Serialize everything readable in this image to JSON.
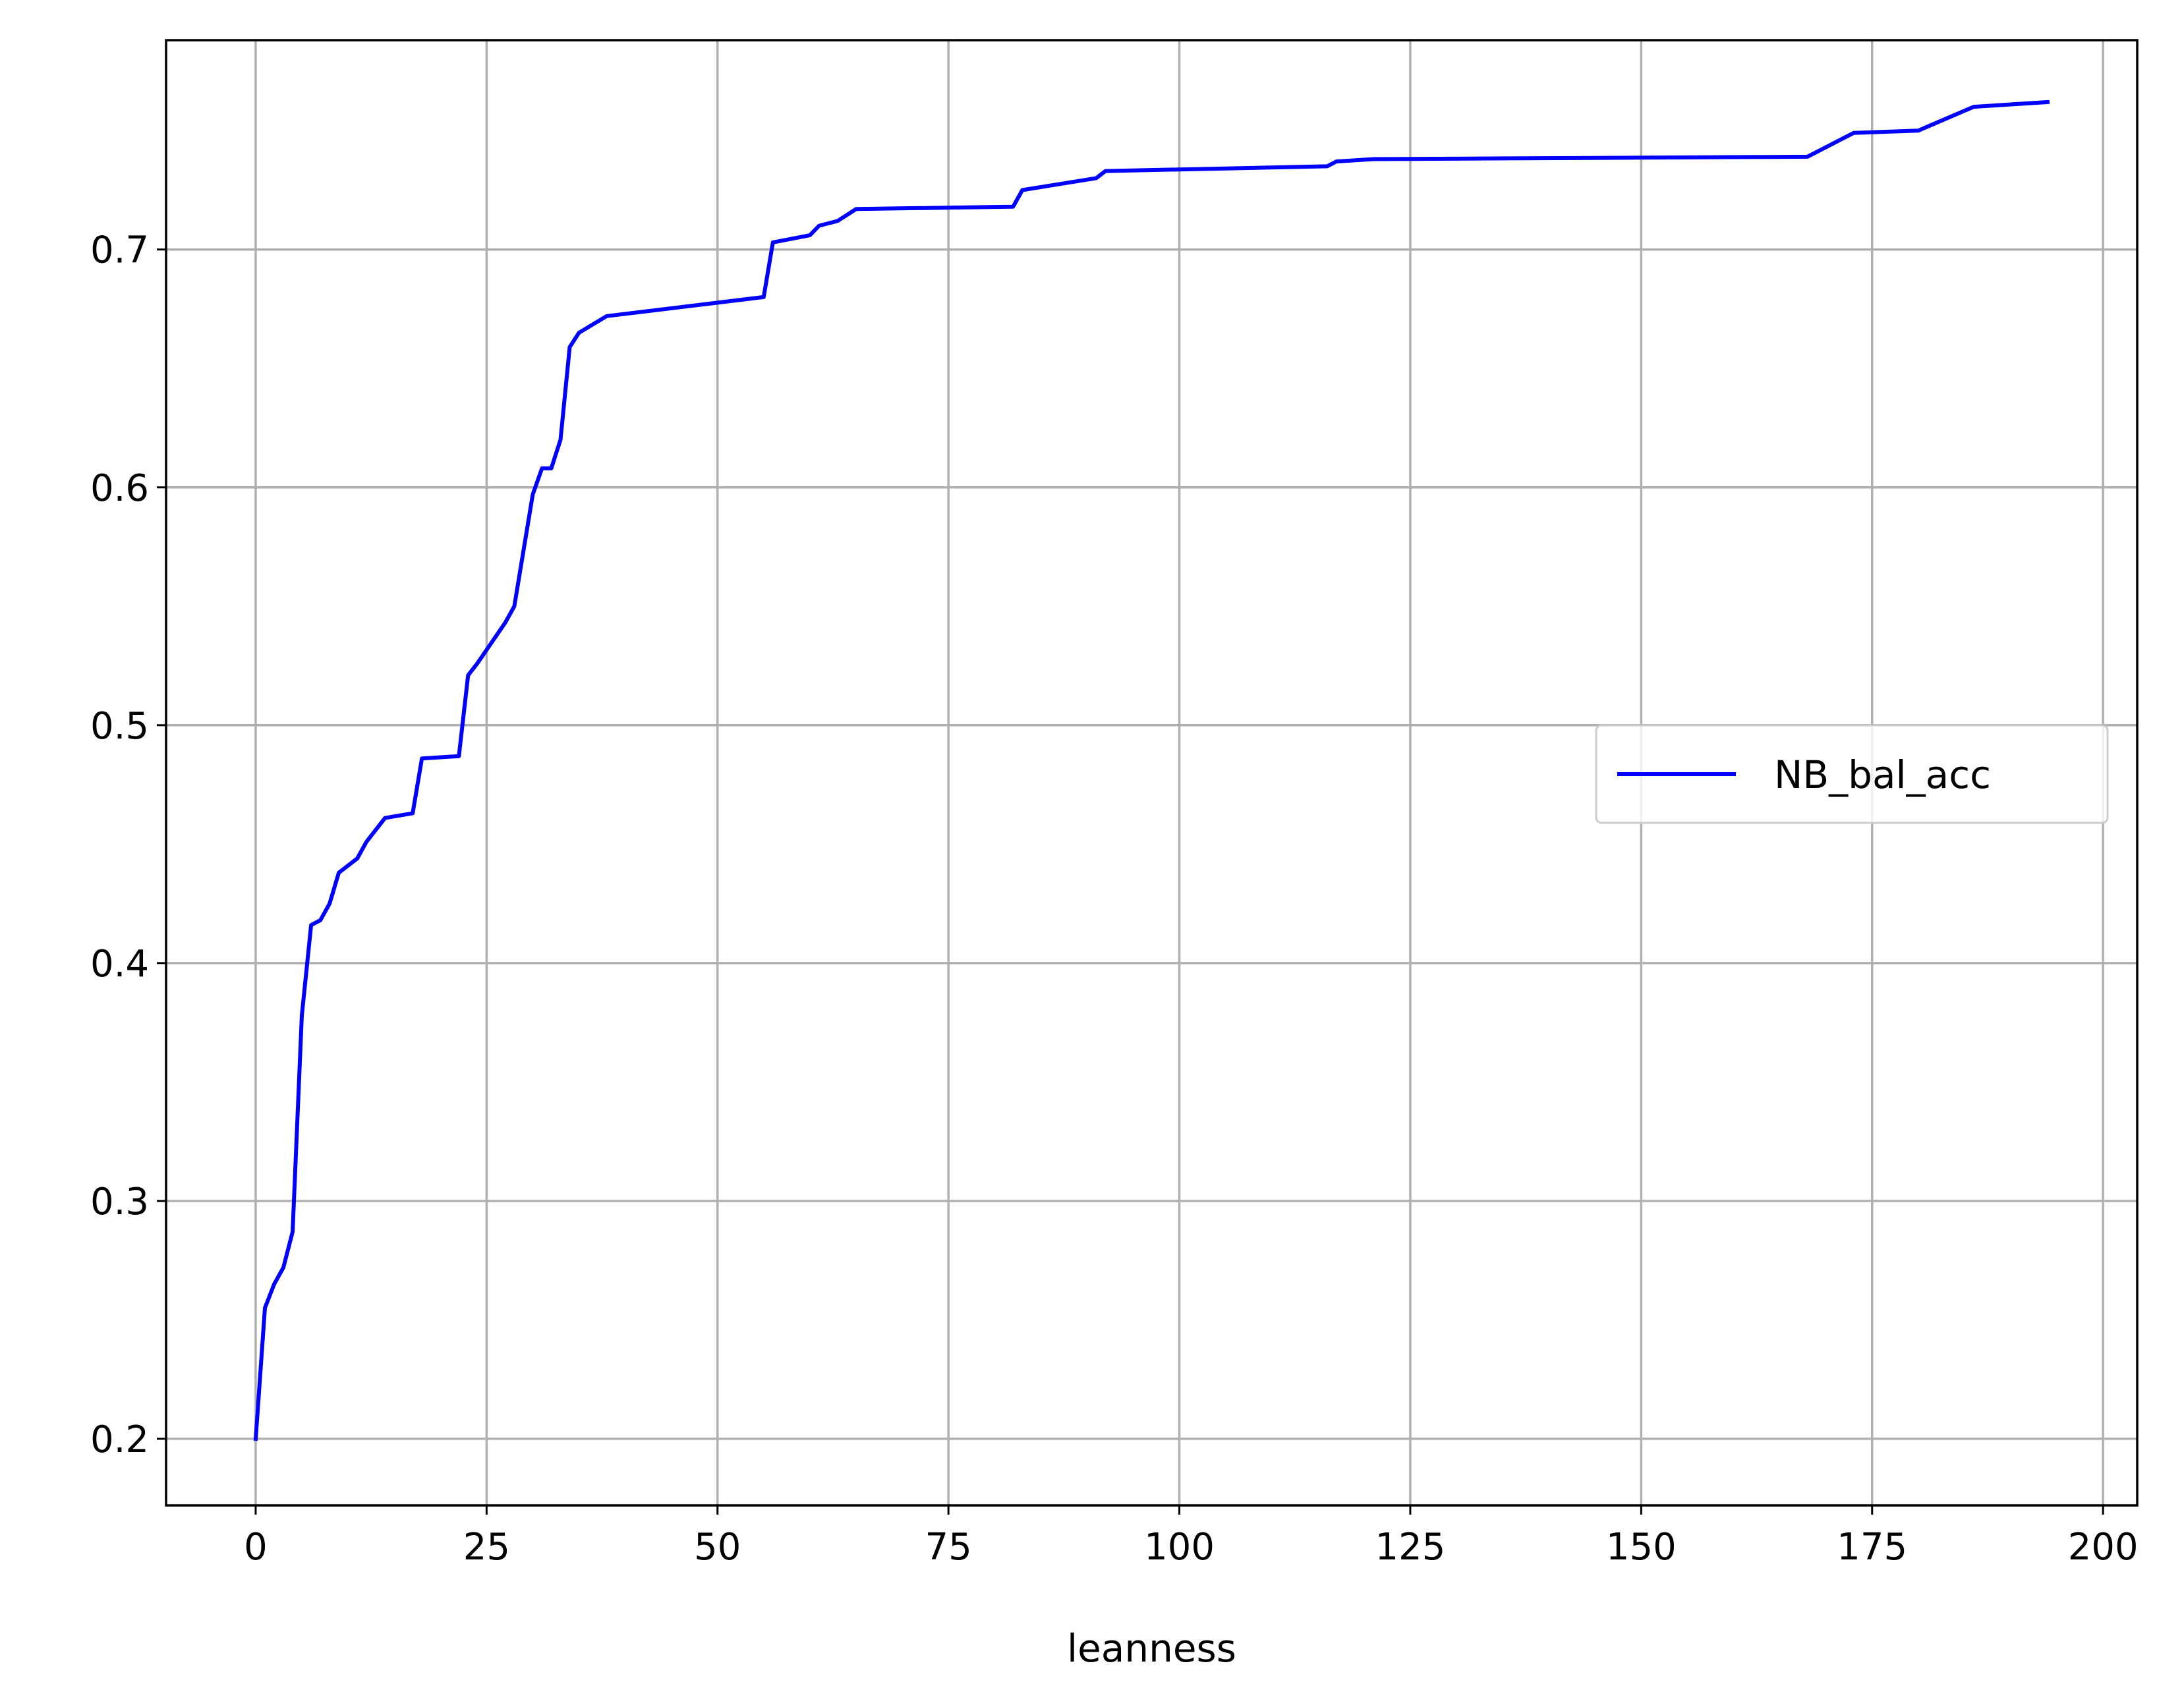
{
  "chart_data": {
    "type": "line",
    "title": "",
    "xlabel": "leanness",
    "ylabel": "",
    "xlim": [
      -9.7,
      203.7
    ],
    "ylim": [
      0.172,
      0.788
    ],
    "xticks": [
      0,
      25,
      50,
      75,
      100,
      125,
      150,
      175,
      200
    ],
    "yticks": [
      0.2,
      0.3,
      0.4,
      0.5,
      0.6,
      0.7
    ],
    "grid": true,
    "legend_position": "center-right",
    "series": [
      {
        "name": "NB_bal_acc",
        "color": "#0000ff",
        "x": [
          0,
          1,
          2,
          3,
          4,
          5,
          6,
          7,
          8,
          9,
          11,
          12,
          14,
          17,
          18,
          22,
          23,
          24,
          27,
          28,
          30,
          31,
          32,
          33,
          34,
          35,
          38,
          55,
          56,
          60,
          61,
          63,
          65,
          82,
          83,
          91,
          92,
          116,
          117,
          121,
          168,
          173,
          180,
          186,
          194
        ],
        "y": [
          0.2,
          0.255,
          0.265,
          0.272,
          0.287,
          0.378,
          0.416,
          0.418,
          0.425,
          0.438,
          0.444,
          0.451,
          0.461,
          0.463,
          0.486,
          0.487,
          0.521,
          0.526,
          0.543,
          0.55,
          0.597,
          0.608,
          0.608,
          0.62,
          0.659,
          0.665,
          0.672,
          0.68,
          0.703,
          0.706,
          0.71,
          0.712,
          0.717,
          0.718,
          0.725,
          0.73,
          0.733,
          0.735,
          0.737,
          0.738,
          0.739,
          0.749,
          0.75,
          0.76,
          0.762
        ]
      }
    ]
  }
}
